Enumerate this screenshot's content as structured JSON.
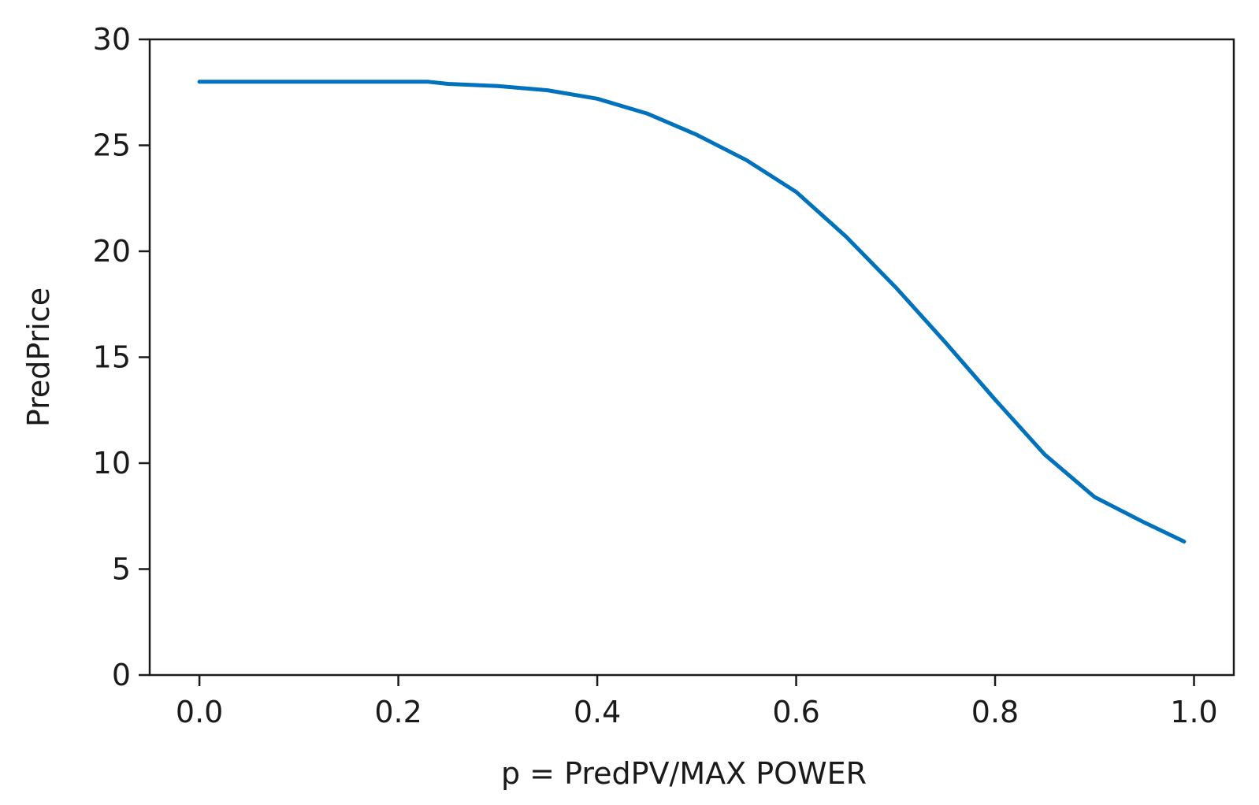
{
  "chart_data": {
    "type": "line",
    "title": "",
    "xlabel": "p = PredPV/MAX POWER",
    "ylabel": "PredPrice",
    "xlim": [
      -0.05,
      1.04
    ],
    "ylim": [
      0,
      30
    ],
    "xticks": [
      0.0,
      0.2,
      0.4,
      0.6,
      0.8,
      1.0
    ],
    "xtick_labels": [
      "0.0",
      "0.2",
      "0.4",
      "0.6",
      "0.8",
      "1.0"
    ],
    "yticks": [
      0,
      5,
      10,
      15,
      20,
      25,
      30
    ],
    "ytick_labels": [
      "0",
      "5",
      "10",
      "15",
      "20",
      "25",
      "30"
    ],
    "grid": false,
    "line_color": "#0072bd",
    "series": [
      {
        "x": [
          0.0,
          0.05,
          0.1,
          0.15,
          0.2,
          0.23,
          0.25,
          0.3,
          0.35,
          0.4,
          0.45,
          0.5,
          0.55,
          0.6,
          0.65,
          0.7,
          0.75,
          0.8,
          0.85,
          0.9,
          0.95,
          0.99
        ],
        "y": [
          28.0,
          28.0,
          28.0,
          28.0,
          28.0,
          28.0,
          27.9,
          27.8,
          27.6,
          27.2,
          26.5,
          25.5,
          24.3,
          22.8,
          20.7,
          18.3,
          15.7,
          13.0,
          10.4,
          8.4,
          7.2,
          6.3
        ]
      }
    ]
  }
}
